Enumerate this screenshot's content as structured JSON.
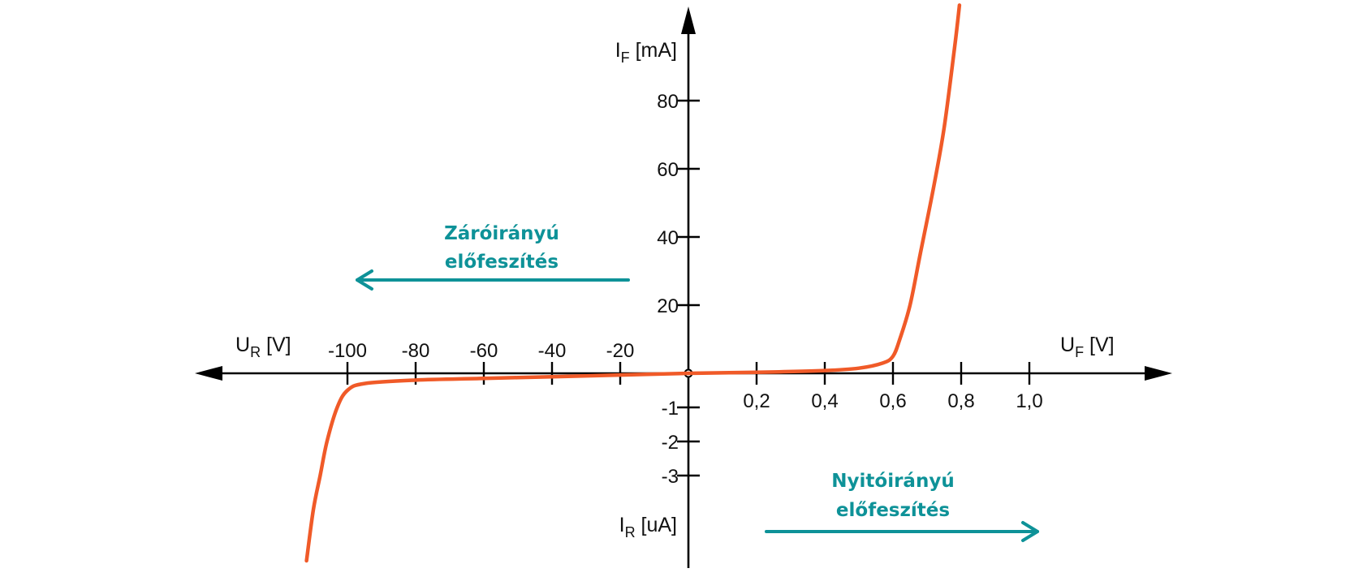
{
  "chart_data": {
    "type": "line",
    "title": "",
    "colors": {
      "curve": "#f05a28",
      "annotation": "#0e9298",
      "axis": "#000000"
    },
    "axes": {
      "forward_voltage": {
        "label_main": "U",
        "label_sub": "F",
        "label_unit": " [V]",
        "ticks": [
          "0,2",
          "0,4",
          "0,6",
          "0,8",
          "1,0"
        ],
        "range": [
          0,
          1.2
        ]
      },
      "reverse_voltage": {
        "label_main": "U",
        "label_sub": "R",
        "label_unit": " [V]",
        "ticks": [
          "-100",
          "-80",
          "-60",
          "-40",
          "-20"
        ],
        "range": [
          -120,
          0
        ]
      },
      "forward_current": {
        "label_main": "I",
        "label_sub": "F",
        "label_unit": " [mA]",
        "ticks": [
          "20",
          "40",
          "60",
          "80"
        ],
        "range": [
          0,
          100
        ]
      },
      "reverse_current": {
        "label_main": "I",
        "label_sub": "R",
        "label_unit": " [uA]",
        "ticks": [
          "-1",
          "-2",
          "-3"
        ],
        "range": [
          -5,
          0
        ]
      }
    },
    "series": [
      {
        "forward_branch": {
          "x_unit": "V",
          "y_unit": "mA",
          "points": [
            [
              0,
              0
            ],
            [
              0.2,
              0.3
            ],
            [
              0.4,
              0.8
            ],
            [
              0.5,
              1.5
            ],
            [
              0.57,
              3
            ],
            [
              0.6,
              5
            ],
            [
              0.62,
              10
            ],
            [
              0.65,
              20
            ],
            [
              0.68,
              35
            ],
            [
              0.72,
              55
            ],
            [
              0.75,
              72
            ],
            [
              0.78,
              95
            ],
            [
              0.795,
              108
            ]
          ]
        },
        "reverse_branch": {
          "x_unit": "V",
          "y_unit": "uA",
          "points": [
            [
              0,
              0
            ],
            [
              -20,
              -0.05
            ],
            [
              -40,
              -0.1
            ],
            [
              -60,
              -0.15
            ],
            [
              -80,
              -0.2
            ],
            [
              -95,
              -0.3
            ],
            [
              -100,
              -0.5
            ],
            [
              -103,
              -1.0
            ],
            [
              -106,
              -2.0
            ],
            [
              -108,
              -3.0
            ],
            [
              -110,
              -4.0
            ],
            [
              -112,
              -5.5
            ]
          ]
        }
      }
    ],
    "annotations": [
      {
        "lines": [
          "Záróirányú",
          "előfeszítés"
        ],
        "arrow_direction": "left"
      },
      {
        "lines": [
          "Nyitóirányú",
          "előfeszítés"
        ],
        "arrow_direction": "right"
      }
    ]
  }
}
